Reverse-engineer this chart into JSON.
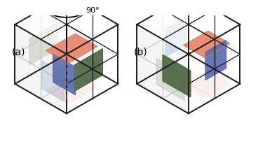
{
  "title_a": "(a)",
  "title_b": "(b)",
  "bg_color": "#ffffff",
  "cube_edge_color": "#1a1a1a",
  "cube_edge_lw": 1.4,
  "slab_orange": "#E8856A",
  "slab_blue": "#5B6DAE",
  "slab_green": "#4D6741",
  "slab_orange_ghost": "#F0C4B5",
  "slab_blue_ghost": "#BFC8E0",
  "slab_green_ghost": "#C5CCBA",
  "dashed_axis_color": "#888888",
  "label_fontsize": 10,
  "rotation_label": "90°"
}
